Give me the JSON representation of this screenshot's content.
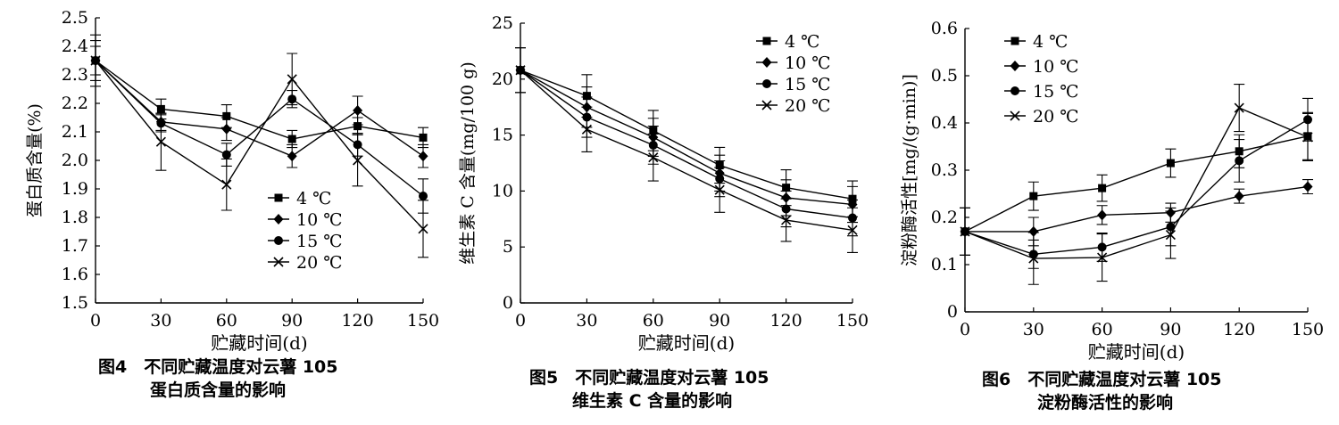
{
  "figure_series_names": [
    "4 ℃",
    "10 ℃",
    "15 ℃",
    "20 ℃"
  ],
  "marker_types": [
    "square",
    "diamond",
    "circle",
    "cross"
  ],
  "chart_data": [
    {
      "type": "line",
      "caption_line1": "图4　不同贮藏温度对云薯 105",
      "caption_line2": "蛋白质含量的影响",
      "xlabel": "贮藏时间(d)",
      "ylabel": "蛋白质含量(%)",
      "x": [
        0,
        30,
        60,
        90,
        120,
        150
      ],
      "xticks": [
        "0",
        "30",
        "60",
        "90",
        "120",
        "150"
      ],
      "xlim": [
        0,
        150
      ],
      "ylim": [
        1.5,
        2.5
      ],
      "yticks": [
        "1.5",
        "1.6",
        "1.7",
        "1.8",
        "1.9",
        "2.0",
        "2.1",
        "2.2",
        "2.3",
        "2.4",
        "2.5"
      ],
      "legend_position": "lower-right",
      "grid": false,
      "series": [
        {
          "name": "4 ℃",
          "values": [
            2.35,
            2.18,
            2.155,
            2.075,
            2.12,
            2.08
          ],
          "errors": [
            0.05,
            0.035,
            0.04,
            0.03,
            0.03,
            0.035
          ]
        },
        {
          "name": "10 ℃",
          "values": [
            2.35,
            2.135,
            2.11,
            2.015,
            2.175,
            2.015
          ],
          "errors": [
            0.05,
            0.03,
            0.04,
            0.04,
            0.05,
            0.04
          ]
        },
        {
          "name": "15 ℃",
          "values": [
            2.35,
            2.13,
            2.02,
            2.215,
            2.055,
            1.875
          ],
          "errors": [
            0.07,
            0.03,
            0.04,
            0.03,
            0.04,
            0.06
          ]
        },
        {
          "name": "20 ℃",
          "values": [
            2.35,
            2.065,
            1.915,
            2.285,
            2.0,
            1.76
          ],
          "errors": [
            0.09,
            0.1,
            0.09,
            0.09,
            0.09,
            0.1
          ]
        }
      ]
    },
    {
      "type": "line",
      "caption_line1": "图5　不同贮藏温度对云薯 105",
      "caption_line2": "维生素 C 含量的影响",
      "xlabel": "贮藏时间(d)",
      "ylabel": "维生素 C 含量(mg/100 g)",
      "x": [
        0,
        30,
        60,
        90,
        120,
        150
      ],
      "xticks": [
        "0",
        "30",
        "60",
        "90",
        "120",
        "150"
      ],
      "xlim": [
        0,
        150
      ],
      "ylim": [
        0,
        25
      ],
      "yticks": [
        "0",
        "5",
        "10",
        "15",
        "20",
        "25"
      ],
      "legend_position": "top-right",
      "grid": false,
      "series": [
        {
          "name": "4 ℃",
          "values": [
            20.8,
            18.5,
            15.4,
            12.3,
            10.3,
            9.3
          ],
          "errors": [
            2.0,
            1.9,
            1.8,
            1.6,
            1.6,
            1.6
          ]
        },
        {
          "name": "10 ℃",
          "values": [
            20.8,
            17.5,
            14.8,
            11.6,
            9.4,
            8.8
          ],
          "errors": [
            2.0,
            1.8,
            1.7,
            1.6,
            1.6,
            1.6
          ]
        },
        {
          "name": "15 ℃",
          "values": [
            20.8,
            16.6,
            14.1,
            11.1,
            8.4,
            7.6
          ],
          "errors": [
            2.0,
            1.8,
            1.7,
            1.6,
            1.6,
            1.6
          ]
        },
        {
          "name": "20 ℃",
          "values": [
            20.8,
            15.5,
            13.0,
            10.1,
            7.4,
            6.5
          ],
          "errors": [
            2.0,
            2.0,
            2.1,
            2.0,
            1.9,
            2.0
          ]
        }
      ]
    },
    {
      "type": "line",
      "caption_line1": "图6　不同贮藏温度对云薯 105",
      "caption_line2": "淀粉酶活性的影响",
      "xlabel": "贮藏时间(d)",
      "ylabel": "淀粉酶活性[mg/(g·min)]",
      "x": [
        0,
        30,
        60,
        90,
        120,
        150
      ],
      "xticks": [
        "0",
        "30",
        "60",
        "90",
        "120",
        "150"
      ],
      "xlim": [
        0,
        150
      ],
      "ylim": [
        0,
        0.6
      ],
      "yticks": [
        "0",
        "0.1",
        "0.2",
        "0.3",
        "0.4",
        "0.5",
        "0.6"
      ],
      "legend_position": "top-left",
      "grid": false,
      "series": [
        {
          "name": "4 ℃",
          "values": [
            0.17,
            0.245,
            0.262,
            0.315,
            0.34,
            0.372
          ],
          "errors": [
            0.05,
            0.03,
            0.028,
            0.03,
            0.035,
            0.05
          ]
        },
        {
          "name": "10 ℃",
          "values": [
            0.17,
            0.17,
            0.205,
            0.21,
            0.245,
            0.265
          ],
          "errors": [
            0.05,
            0.03,
            0.02,
            0.02,
            0.015,
            0.015
          ]
        },
        {
          "name": "15 ℃",
          "values": [
            0.17,
            0.122,
            0.137,
            0.18,
            0.32,
            0.407
          ],
          "errors": [
            0.05,
            0.03,
            0.03,
            0.04,
            0.045,
            0.045
          ]
        },
        {
          "name": "20 ℃",
          "values": [
            0.17,
            0.113,
            0.115,
            0.163,
            0.432,
            0.37
          ],
          "errors": [
            0.05,
            0.055,
            0.05,
            0.05,
            0.05,
            0.05
          ]
        }
      ]
    }
  ]
}
